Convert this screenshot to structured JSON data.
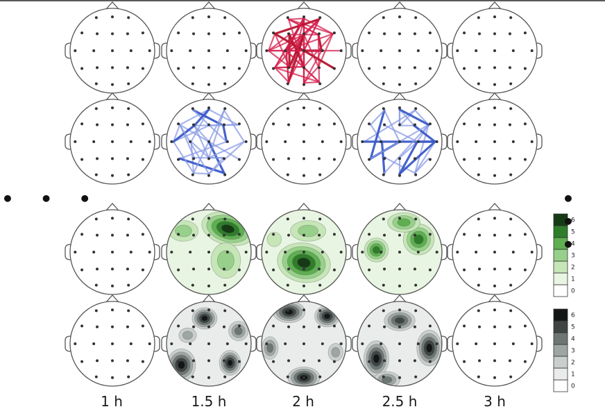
{
  "time_labels": [
    "1 h",
    "1.5 h",
    "2 h",
    "2.5 h",
    "3 h"
  ],
  "ellipsis": "• • •",
  "colors": {
    "head_outline": "#555555",
    "electrode": "#333333",
    "connectivity_red": "#d6204e",
    "connectivity_red_dark": "#b5152e",
    "connectivity_blue": "#3b5bc8",
    "connectivity_blue_light": "#8b9ce6",
    "green_scale": [
      "#ffffff",
      "#e8f5e2",
      "#c6e6b8",
      "#97d08a",
      "#5fae52",
      "#2f7d2a",
      "#163a16"
    ],
    "gray_scale": [
      "#ffffff",
      "#e9eceb",
      "#c9cfcd",
      "#9ea6a4",
      "#6d7674",
      "#3e4544",
      "#121716"
    ]
  },
  "colorbar_green": {
    "ticks": [
      "0",
      "1",
      "2",
      "3",
      "4",
      "5",
      "6"
    ]
  },
  "colorbar_gray": {
    "ticks": [
      "0",
      "1",
      "2",
      "3",
      "4",
      "5",
      "6"
    ]
  },
  "rows": [
    {
      "name": "connectivity-red",
      "active": [
        false,
        false,
        true,
        false,
        false
      ]
    },
    {
      "name": "connectivity-blue",
      "active": [
        false,
        true,
        false,
        true,
        false
      ]
    },
    {
      "name": "topomap-green",
      "active": [
        false,
        true,
        true,
        true,
        false
      ]
    },
    {
      "name": "topomap-gray",
      "active": [
        false,
        true,
        true,
        true,
        false
      ]
    }
  ]
}
